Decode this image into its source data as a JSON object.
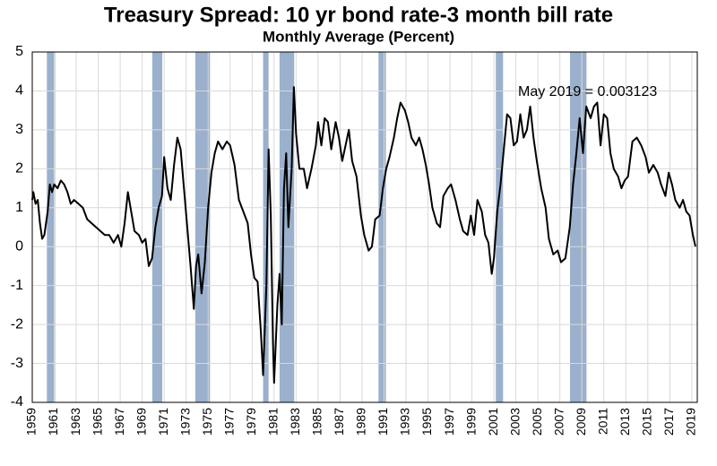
{
  "chart_data": {
    "type": "line",
    "title": "Treasury Spread: 10 yr bond rate-3 month bill rate",
    "subtitle": "Monthly Average (Percent)",
    "annotation": "May 2019 = 0.003123",
    "color": "#000000",
    "recession_color": "#9ab0cc",
    "grid": true,
    "xlim": [
      1959,
      2019.5
    ],
    "ylim": [
      -4,
      5
    ],
    "xticks": [
      1959,
      1961,
      1963,
      1965,
      1967,
      1969,
      1971,
      1973,
      1975,
      1977,
      1979,
      1981,
      1983,
      1985,
      1987,
      1989,
      1991,
      1993,
      1995,
      1997,
      1999,
      2001,
      2003,
      2005,
      2007,
      2009,
      2011,
      2013,
      2015,
      2017,
      2019
    ],
    "yticks": [
      -4,
      -3,
      -2,
      -1,
      0,
      1,
      2,
      3,
      4,
      5
    ],
    "recessions": [
      [
        1960.33,
        1961.08
      ],
      [
        1969.92,
        1970.83
      ],
      [
        1973.83,
        1975.17
      ],
      [
        1980.0,
        1980.5
      ],
      [
        1981.5,
        1982.83
      ],
      [
        1990.5,
        1991.17
      ],
      [
        2001.17,
        2001.83
      ],
      [
        2007.92,
        2009.42
      ]
    ],
    "x": [
      1959.0,
      1959.1,
      1959.3,
      1959.5,
      1959.7,
      1959.9,
      1960.1,
      1960.4,
      1960.6,
      1960.8,
      1961.0,
      1961.3,
      1961.6,
      1961.9,
      1962.2,
      1962.5,
      1962.8,
      1963.2,
      1963.6,
      1964.0,
      1964.4,
      1964.8,
      1965.2,
      1965.6,
      1966.0,
      1966.4,
      1966.8,
      1967.1,
      1967.4,
      1967.7,
      1968.0,
      1968.3,
      1968.7,
      1969.0,
      1969.3,
      1969.6,
      1969.9,
      1970.2,
      1970.5,
      1970.8,
      1971.0,
      1971.3,
      1971.6,
      1971.9,
      1972.2,
      1972.5,
      1972.8,
      1973.1,
      1973.4,
      1973.7,
      1973.9,
      1974.1,
      1974.4,
      1974.7,
      1975.0,
      1975.3,
      1975.6,
      1975.9,
      1976.3,
      1976.7,
      1977.0,
      1977.4,
      1977.8,
      1978.2,
      1978.6,
      1978.9,
      1979.2,
      1979.5,
      1979.8,
      1980.0,
      1980.3,
      1980.5,
      1980.7,
      1980.9,
      1981.0,
      1981.3,
      1981.5,
      1981.7,
      1981.9,
      1982.1,
      1982.3,
      1982.6,
      1982.8,
      1983.0,
      1983.3,
      1983.7,
      1984.0,
      1984.4,
      1984.8,
      1985.0,
      1985.3,
      1985.6,
      1985.9,
      1986.2,
      1986.6,
      1986.9,
      1987.2,
      1987.5,
      1987.8,
      1988.1,
      1988.5,
      1988.9,
      1989.2,
      1989.6,
      1989.9,
      1990.2,
      1990.6,
      1990.9,
      1991.2,
      1991.5,
      1991.9,
      1992.2,
      1992.5,
      1992.9,
      1993.2,
      1993.5,
      1993.9,
      1994.2,
      1994.5,
      1994.8,
      1995.1,
      1995.4,
      1995.8,
      1996.1,
      1996.4,
      1996.8,
      1997.1,
      1997.5,
      1997.9,
      1998.2,
      1998.6,
      1998.9,
      1999.2,
      1999.5,
      1999.9,
      2000.2,
      2000.5,
      2000.8,
      2001.0,
      2001.3,
      2001.6,
      2001.9,
      2002.2,
      2002.5,
      2002.8,
      2003.1,
      2003.4,
      2003.7,
      2004.0,
      2004.3,
      2004.6,
      2004.9,
      2005.3,
      2005.7,
      2006.0,
      2006.4,
      2006.8,
      2007.1,
      2007.5,
      2007.9,
      2008.2,
      2008.5,
      2008.8,
      2009.1,
      2009.4,
      2009.8,
      2010.1,
      2010.4,
      2010.7,
      2011.0,
      2011.3,
      2011.6,
      2011.9,
      2012.3,
      2012.6,
      2012.9,
      2013.2,
      2013.6,
      2014.0,
      2014.4,
      2014.8,
      2015.1,
      2015.5,
      2015.9,
      2016.2,
      2016.6,
      2016.9,
      2017.2,
      2017.5,
      2017.9,
      2018.2,
      2018.5,
      2018.8,
      2019.1,
      2019.33
    ],
    "values": [
      1.2,
      1.4,
      1.1,
      1.2,
      0.6,
      0.2,
      0.3,
      0.9,
      1.6,
      1.4,
      1.6,
      1.5,
      1.7,
      1.6,
      1.4,
      1.1,
      1.2,
      1.1,
      1.0,
      0.7,
      0.6,
      0.5,
      0.4,
      0.3,
      0.3,
      0.1,
      0.3,
      0.0,
      0.6,
      1.4,
      0.9,
      0.4,
      0.3,
      0.1,
      0.2,
      -0.5,
      -0.3,
      0.5,
      1.0,
      1.3,
      2.3,
      1.5,
      1.2,
      2.1,
      2.8,
      2.5,
      1.5,
      0.5,
      -0.5,
      -1.6,
      -0.5,
      -0.2,
      -1.2,
      -0.4,
      1.0,
      1.9,
      2.4,
      2.7,
      2.5,
      2.7,
      2.6,
      2.1,
      1.2,
      0.9,
      0.6,
      -0.2,
      -0.8,
      -0.9,
      -2.2,
      -3.3,
      -1.0,
      2.5,
      0.8,
      -2.5,
      -3.5,
      -1.5,
      -0.7,
      -2.0,
      1.5,
      2.4,
      0.5,
      2.0,
      4.1,
      2.9,
      2.0,
      2.0,
      1.5,
      2.0,
      2.6,
      3.2,
      2.6,
      3.3,
      3.2,
      2.5,
      3.2,
      2.8,
      2.2,
      2.6,
      3.0,
      2.2,
      1.8,
      0.8,
      0.3,
      -0.1,
      0.0,
      0.7,
      0.8,
      1.5,
      2.0,
      2.3,
      2.8,
      3.3,
      3.7,
      3.5,
      3.2,
      2.8,
      2.6,
      2.8,
      2.5,
      2.1,
      1.6,
      1.0,
      0.6,
      0.5,
      1.3,
      1.5,
      1.6,
      1.2,
      0.7,
      0.4,
      0.3,
      0.8,
      0.3,
      1.2,
      0.9,
      0.3,
      0.1,
      -0.7,
      -0.3,
      0.9,
      1.6,
      2.5,
      3.4,
      3.3,
      2.6,
      2.7,
      3.4,
      2.8,
      3.0,
      3.6,
      2.8,
      2.2,
      1.5,
      1.0,
      0.2,
      -0.2,
      -0.1,
      -0.4,
      -0.3,
      0.5,
      1.6,
      2.4,
      3.3,
      2.4,
      3.6,
      3.3,
      3.6,
      3.7,
      2.6,
      3.4,
      3.3,
      2.4,
      2.0,
      1.8,
      1.5,
      1.7,
      1.8,
      2.7,
      2.8,
      2.6,
      2.3,
      1.9,
      2.1,
      1.9,
      1.6,
      1.3,
      1.9,
      1.6,
      1.2,
      1.0,
      1.2,
      0.9,
      0.8,
      0.3,
      0.003123
    ]
  }
}
